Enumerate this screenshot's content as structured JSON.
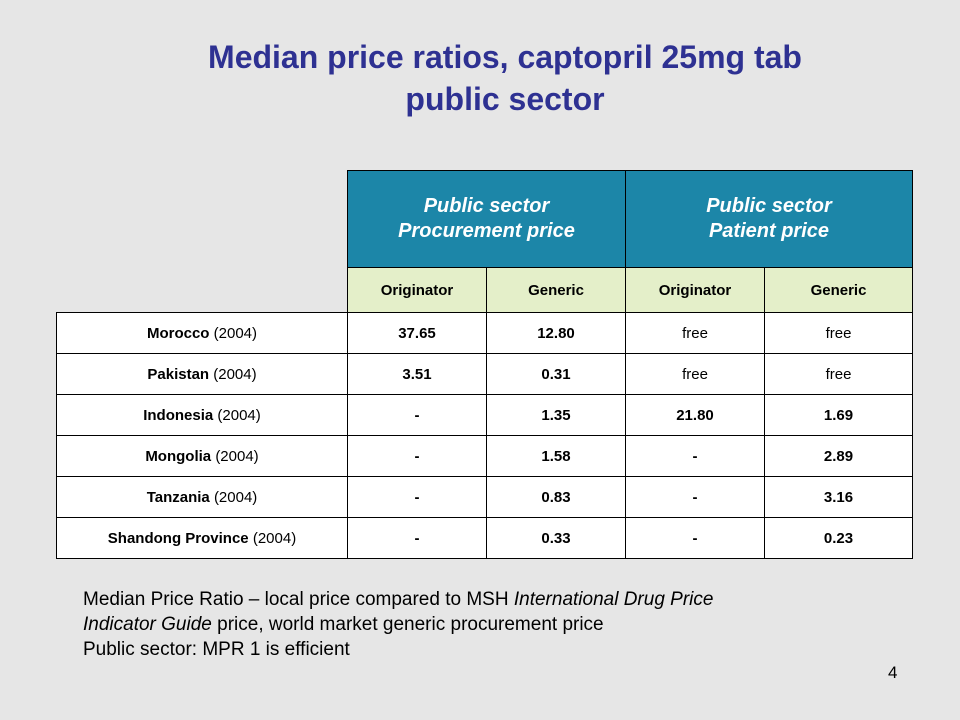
{
  "slide": {
    "title_line1": "Median price ratios, captopril 25mg tab",
    "title_line2": "public sector",
    "page_number": "4"
  },
  "table": {
    "groups": [
      {
        "line1": "Public sector",
        "line2": "Procurement price"
      },
      {
        "line1": "Public sector",
        "line2": "Patient price"
      }
    ],
    "subheaders": [
      "Originator",
      "Generic",
      "Originator",
      "Generic"
    ],
    "rows": [
      {
        "country": "Morocco",
        "year": "(2004)",
        "values": [
          "37.65",
          "12.80",
          "free",
          "free"
        ]
      },
      {
        "country": "Pakistan",
        "year": "(2004)",
        "values": [
          "3.51",
          "0.31",
          "free",
          "free"
        ]
      },
      {
        "country": "Indonesia",
        "year": "(2004)",
        "values": [
          "-",
          "1.35",
          "21.80",
          "1.69"
        ]
      },
      {
        "country": "Mongolia",
        "year": "(2004)",
        "values": [
          "-",
          "1.58",
          "-",
          "2.89"
        ]
      },
      {
        "country": "Tanzania",
        "year": "(2004)",
        "values": [
          "-",
          "0.83",
          "-",
          "3.16"
        ]
      },
      {
        "country": "Shandong Province",
        "year": "(2004)",
        "values": [
          "-",
          "0.33",
          "-",
          "0.23"
        ]
      }
    ]
  },
  "footnote": {
    "line1_a": "Median Price Ratio – local price compared to MSH ",
    "line1_b": "International Drug Price",
    "line2_a": "Indicator Guide",
    "line2_b": " price, world market generic procurement price",
    "line3": "Public sector: MPR 1 is efficient"
  },
  "colors": {
    "title": "#2e3192",
    "group_header_bg": "#1c86a8",
    "subheader_bg": "#e4efc9",
    "background": "#e6e6e6"
  }
}
